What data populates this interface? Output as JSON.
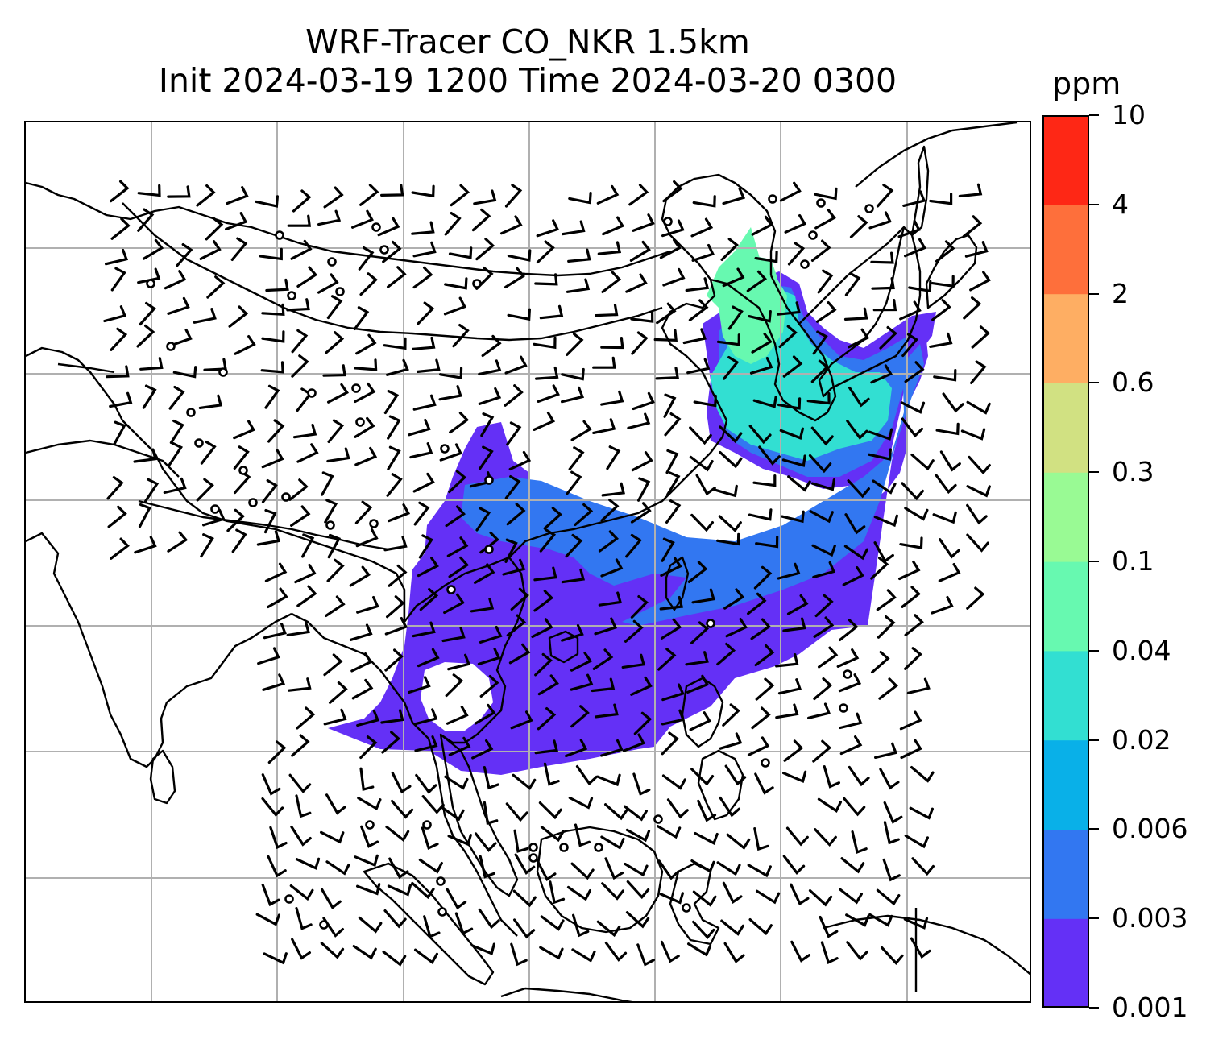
{
  "title": {
    "line1": "WRF-Tracer CO_NKR 1.5km",
    "line2": "Init 2024-03-19 1200 Time 2024-03-20 0300"
  },
  "colorbar": {
    "unit": "ppm",
    "ticks": [
      "0.001",
      "0.003",
      "0.006",
      "0.02",
      "0.04",
      "0.1",
      "0.3",
      "0.6",
      "2",
      "4",
      "10"
    ],
    "colors": [
      "#6430f6",
      "#3277f1",
      "#09b0e8",
      "#32dfd2",
      "#67f9b0",
      "#99fa94",
      "#d1e182",
      "#feae63",
      "#fe6f3b",
      "#fe2715"
    ]
  },
  "map": {
    "type": "filled-contour-with-wind-barbs",
    "field": "CO tracer concentration",
    "region": "East Asia / Southeast Asia",
    "gridlines": true,
    "coastlines": true,
    "plume_colors": {
      "lowest": "#6430f6",
      "second": "#3277f1",
      "third": "#32dfd2",
      "fourth": "#67f9b0"
    }
  }
}
